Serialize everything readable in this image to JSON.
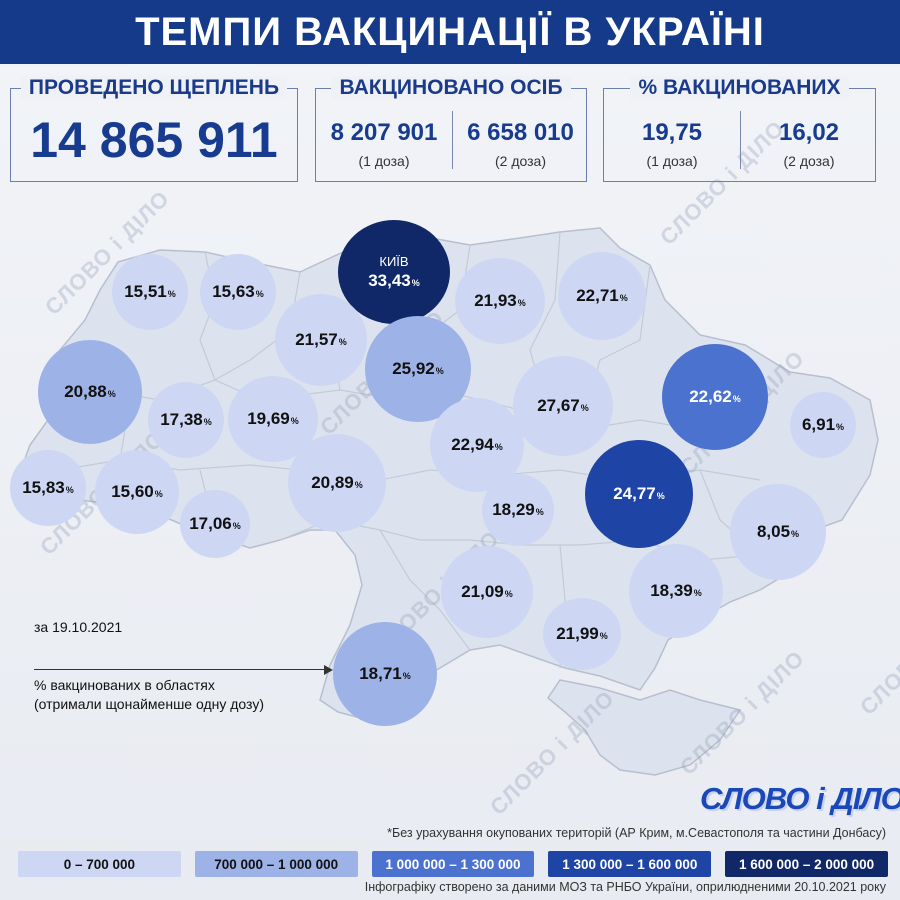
{
  "header": {
    "title": "ТЕМПИ ВАКЦИНАЦІЇ В УКРАЇНІ"
  },
  "stats": {
    "doses": {
      "title": "ПРОВЕДЕНО ЩЕПЛЕНЬ",
      "value": "14 865 911"
    },
    "persons": {
      "title": "ВАКЦИНОВАНО ОСІБ",
      "first": {
        "value": "8 207 901",
        "label": "(1 доза)"
      },
      "second": {
        "value": "6 658 010",
        "label": "(2 доза)"
      }
    },
    "percent": {
      "title": "% ВАКЦИНОВАНИХ",
      "first": {
        "value": "19,75",
        "label": "(1 доза)"
      },
      "second": {
        "value": "16,02",
        "label": "(2 доза)"
      }
    }
  },
  "regions": [
    {
      "value": "15,51",
      "suffix": "%",
      "tier": 0
    },
    {
      "value": "15,63",
      "suffix": "%",
      "tier": 0
    },
    {
      "value": "33,43",
      "suffix": "%",
      "tier": 4,
      "city": "КИЇВ"
    },
    {
      "value": "21,93",
      "suffix": "%",
      "tier": 0
    },
    {
      "value": "22,71",
      "suffix": "%",
      "tier": 0
    },
    {
      "value": "21,57",
      "suffix": "%",
      "tier": 0
    },
    {
      "value": "25,92",
      "suffix": "%",
      "tier": 1
    },
    {
      "value": "20,88",
      "suffix": "%",
      "tier": 1
    },
    {
      "value": "17,38",
      "suffix": "%",
      "tier": 0
    },
    {
      "value": "19,69",
      "suffix": "%",
      "tier": 0
    },
    {
      "value": "27,67",
      "suffix": "%",
      "tier": 0
    },
    {
      "value": "22,62",
      "suffix": "%",
      "tier": 2
    },
    {
      "value": "6,91",
      "suffix": "%",
      "tier": 0
    },
    {
      "value": "22,94",
      "suffix": "%",
      "tier": 0
    },
    {
      "value": "15,83",
      "suffix": "%",
      "tier": 0
    },
    {
      "value": "15,60",
      "suffix": "%",
      "tier": 0
    },
    {
      "value": "20,89",
      "suffix": "%",
      "tier": 0
    },
    {
      "value": "24,77",
      "suffix": "%",
      "tier": 3
    },
    {
      "value": "17,06",
      "suffix": "%",
      "tier": 0
    },
    {
      "value": "18,29",
      "suffix": "%",
      "tier": 0
    },
    {
      "value": "8,05",
      "suffix": "%",
      "tier": 0
    },
    {
      "value": "21,09",
      "suffix": "%",
      "tier": 0
    },
    {
      "value": "18,39",
      "suffix": "%",
      "tier": 0
    },
    {
      "value": "21,99",
      "suffix": "%",
      "tier": 0
    },
    {
      "value": "18,71",
      "suffix": "%",
      "tier": 1
    }
  ],
  "notes": {
    "date": "за 19.10.2021",
    "legend_text": "% вакцинованих в областях (отримали щонайменше одну дозу)"
  },
  "logo": "СЛОВО і ДІЛО",
  "watermark": "СЛОВО і ДІЛО",
  "footnote": "*Без урахування окупованих територій (АР Крим, м.Севастополя та частини Донбасу)",
  "legend": [
    {
      "label": "0 – 700 000",
      "color": "#cdd7f3",
      "text_color": "#111111"
    },
    {
      "label": "700 000 – 1 000 000",
      "color": "#9db2e6",
      "text_color": "#111111"
    },
    {
      "label": "1 000 000 – 1 300 000",
      "color": "#4c72d0",
      "text_color": "#ffffff"
    },
    {
      "label": "1 300 000 – 1 600 000",
      "color": "#1e45a6",
      "text_color": "#ffffff"
    },
    {
      "label": "1 600 000 – 2 000 000",
      "color": "#102868",
      "text_color": "#ffffff"
    }
  ],
  "source": "Інфографіку створено за даними МОЗ та РНБО України, оприлюдненими 20.10.2021 року"
}
